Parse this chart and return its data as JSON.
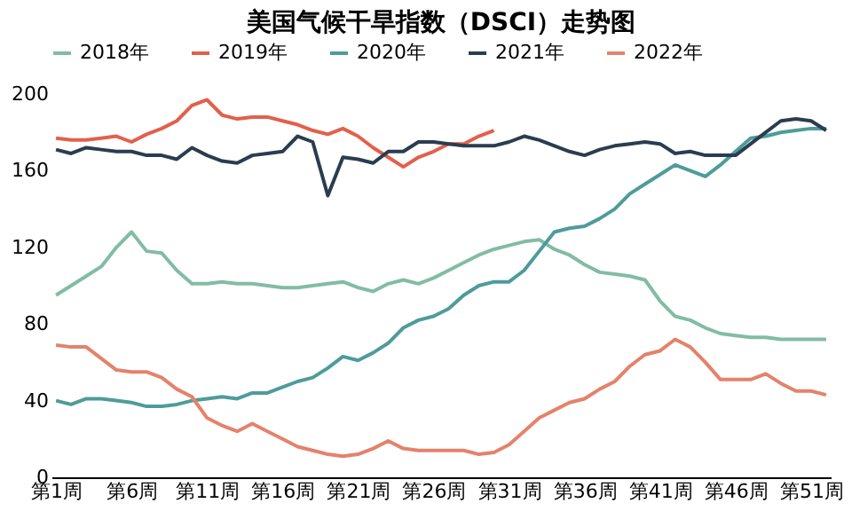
{
  "chart_data": {
    "type": "line",
    "title": "美国气候干旱指数（DSCI）走势图",
    "categories": [
      "第1周",
      null,
      null,
      null,
      null,
      "第6周",
      null,
      null,
      null,
      null,
      "第11周",
      null,
      null,
      null,
      null,
      "第16周",
      null,
      null,
      null,
      null,
      "第21周",
      null,
      null,
      null,
      null,
      "第26周",
      null,
      null,
      null,
      null,
      "第31周",
      null,
      null,
      null,
      null,
      "第36周",
      null,
      null,
      null,
      null,
      "第41周",
      null,
      null,
      null,
      null,
      "第46周",
      null,
      null,
      null,
      null,
      "第51周",
      null
    ],
    "series": [
      {
        "name": "2018年",
        "color": "#82bca4",
        "values": [
          95,
          100,
          105,
          110,
          120,
          128,
          118,
          117,
          108,
          101,
          101,
          102,
          101,
          101,
          100,
          99,
          99,
          100,
          101,
          102,
          99,
          97,
          101,
          103,
          101,
          104,
          108,
          112,
          116,
          119,
          121,
          123,
          124,
          119,
          116,
          111,
          107,
          106,
          105,
          103,
          92,
          84,
          82,
          78,
          75,
          74,
          73,
          73,
          72,
          72,
          72,
          72
        ]
      },
      {
        "name": "2019年",
        "color": "#e2604c",
        "values": [
          177,
          176,
          176,
          177,
          178,
          175,
          179,
          182,
          186,
          194,
          197,
          189,
          187,
          188,
          188,
          186,
          184,
          181,
          179,
          182,
          178,
          172,
          167,
          162,
          167,
          170,
          174,
          174,
          178,
          181,
          null,
          null,
          null,
          null,
          null,
          null,
          null,
          null,
          null,
          null,
          null,
          null,
          null,
          null,
          null,
          null,
          null,
          null,
          null,
          null,
          null,
          null
        ]
      },
      {
        "name": "2020年",
        "color": "#4f9b9b",
        "values": [
          40,
          38,
          41,
          41,
          40,
          39,
          37,
          37,
          38,
          40,
          41,
          42,
          41,
          44,
          44,
          47,
          50,
          52,
          57,
          63,
          61,
          65,
          70,
          78,
          82,
          84,
          88,
          95,
          100,
          102,
          102,
          108,
          118,
          128,
          130,
          131,
          135,
          140,
          148,
          153,
          158,
          163,
          160,
          157,
          163,
          170,
          177,
          178,
          180,
          181,
          182,
          182
        ]
      },
      {
        "name": "2021年",
        "color": "#2a3d50",
        "values": [
          171,
          169,
          172,
          171,
          170,
          170,
          168,
          168,
          166,
          172,
          168,
          165,
          164,
          168,
          169,
          170,
          178,
          175,
          147,
          167,
          166,
          164,
          170,
          170,
          175,
          175,
          174,
          173,
          173,
          173,
          175,
          178,
          176,
          173,
          170,
          168,
          171,
          173,
          174,
          175,
          174,
          169,
          170,
          168,
          168,
          168,
          174,
          180,
          186,
          187,
          186,
          181
        ]
      },
      {
        "name": "2022年",
        "color": "#e4826c",
        "values": [
          69,
          68,
          68,
          62,
          56,
          55,
          55,
          52,
          46,
          42,
          31,
          27,
          24,
          28,
          24,
          20,
          16,
          14,
          12,
          11,
          12,
          15,
          19,
          15,
          14,
          14,
          14,
          14,
          12,
          13,
          17,
          24,
          31,
          35,
          39,
          41,
          46,
          50,
          58,
          64,
          66,
          72,
          68,
          60,
          51,
          51,
          51,
          54,
          49,
          45,
          45,
          43
        ]
      }
    ],
    "ylim": [
      0,
      200
    ],
    "yticks": [
      0,
      40,
      80,
      120,
      160,
      200
    ],
    "grid": false,
    "legend": "top",
    "line_style": "solid",
    "marker": "none"
  }
}
